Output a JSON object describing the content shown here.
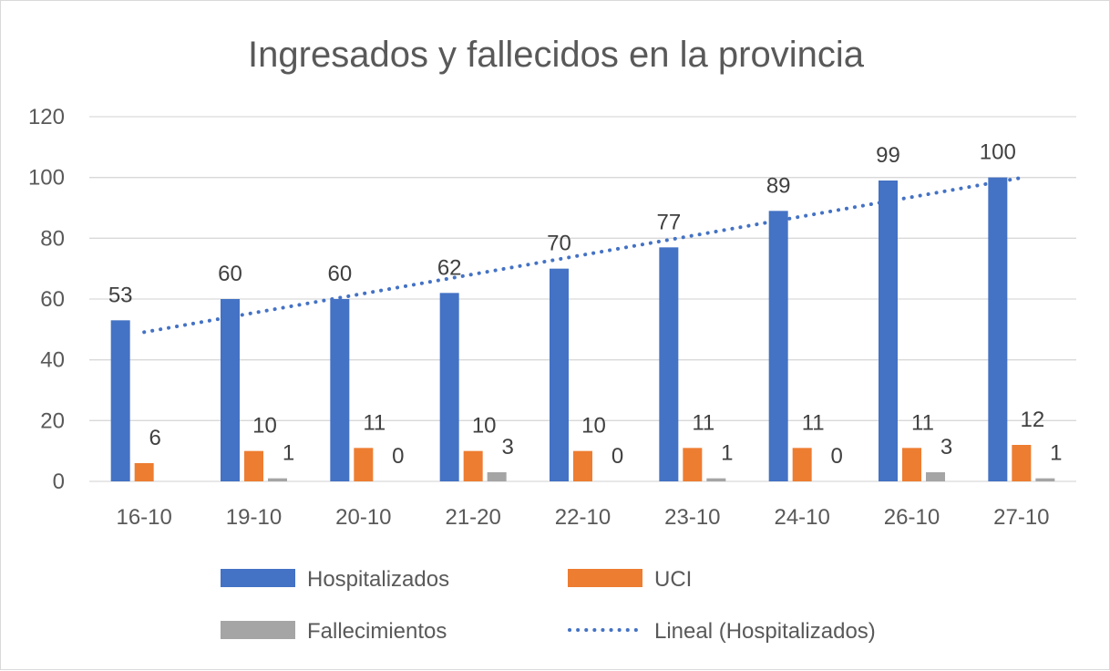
{
  "chart_data": {
    "type": "bar",
    "title": "Ingresados y fallecidos en la provincia",
    "categories": [
      "16-10",
      "19-10",
      "20-10",
      "21-20",
      "22-10",
      "23-10",
      "24-10",
      "26-10",
      "27-10"
    ],
    "series": [
      {
        "name": "Hospitalizados",
        "color": "#4472c4",
        "values": [
          53,
          60,
          60,
          62,
          70,
          77,
          89,
          99,
          100
        ],
        "labels": [
          "53",
          "60",
          "60",
          "62",
          "70",
          "77",
          "89",
          "99",
          "100"
        ]
      },
      {
        "name": "UCI",
        "color": "#ed7d31",
        "values": [
          6,
          10,
          11,
          10,
          10,
          11,
          11,
          11,
          12
        ],
        "labels": [
          "6",
          "10",
          "11",
          "10",
          "10",
          "11",
          "11",
          "11",
          "12"
        ]
      },
      {
        "name": "Fallecimientos",
        "color": "#a5a5a5",
        "values": [
          null,
          1,
          0,
          3,
          0,
          1,
          0,
          3,
          1
        ],
        "labels": [
          null,
          "1",
          "0",
          "3",
          "0",
          "1",
          "0",
          "3",
          "1"
        ]
      }
    ],
    "trendline": {
      "name": "Lineal (Hospitalizados)",
      "type": "linear",
      "of_series": "Hospitalizados",
      "color": "#4472c4",
      "style": "dotted",
      "start": 49.1,
      "end": 99.9
    },
    "ylim": [
      0,
      120
    ],
    "yticks": [
      "0",
      "20",
      "40",
      "60",
      "80",
      "100",
      "120"
    ],
    "grid": true,
    "legend_position": "bottom"
  }
}
